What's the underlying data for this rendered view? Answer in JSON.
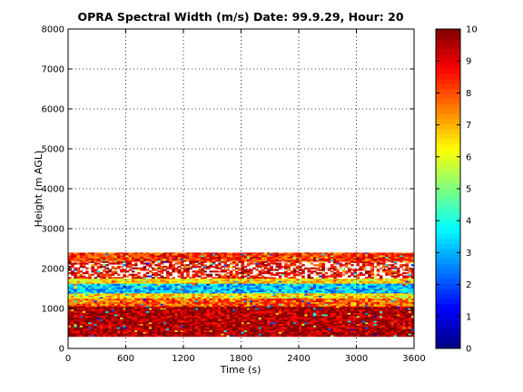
{
  "chart_data": {
    "type": "heatmap",
    "title": "OPRA Spectral Width (m/s)  Date: 99.9.29, Hour: 20",
    "xlabel": "Time (s)",
    "ylabel": "Height (m AGL)",
    "xlim": [
      0,
      3600
    ],
    "ylim": [
      0,
      8000
    ],
    "xticks": [
      0,
      600,
      1200,
      1800,
      2400,
      3000,
      3600
    ],
    "yticks": [
      0,
      1000,
      2000,
      3000,
      4000,
      5000,
      6000,
      7000,
      8000
    ],
    "grid": true,
    "colorbar": {
      "min": 0,
      "max": 10,
      "ticks": [
        0,
        1,
        2,
        3,
        4,
        5,
        6,
        7,
        8,
        9,
        10
      ],
      "colormap": "jet"
    },
    "time_resolution_s": 30,
    "bands": [
      {
        "height_range": [
          2180,
          2400
        ],
        "dominant_value": 8.3,
        "gaps": false
      },
      {
        "height_range": [
          1750,
          2180
        ],
        "dominant_value": 8.8,
        "gaps": true
      },
      {
        "height_range": [
          1620,
          1750
        ],
        "dominant_value": 6.5,
        "gaps": false
      },
      {
        "height_range": [
          1380,
          1620
        ],
        "dominant_value": 3.2,
        "gaps": false
      },
      {
        "height_range": [
          1250,
          1380
        ],
        "dominant_value": 6.6,
        "gaps": false
      },
      {
        "height_range": [
          1050,
          1250
        ],
        "dominant_value": 7.9,
        "gaps": false
      },
      {
        "height_range": [
          300,
          1050
        ],
        "dominant_value": 9.7,
        "gaps": false
      }
    ]
  },
  "colors": {
    "colormap_low": "#00008f",
    "colormap_high": "#800000",
    "grid": "#000000"
  }
}
